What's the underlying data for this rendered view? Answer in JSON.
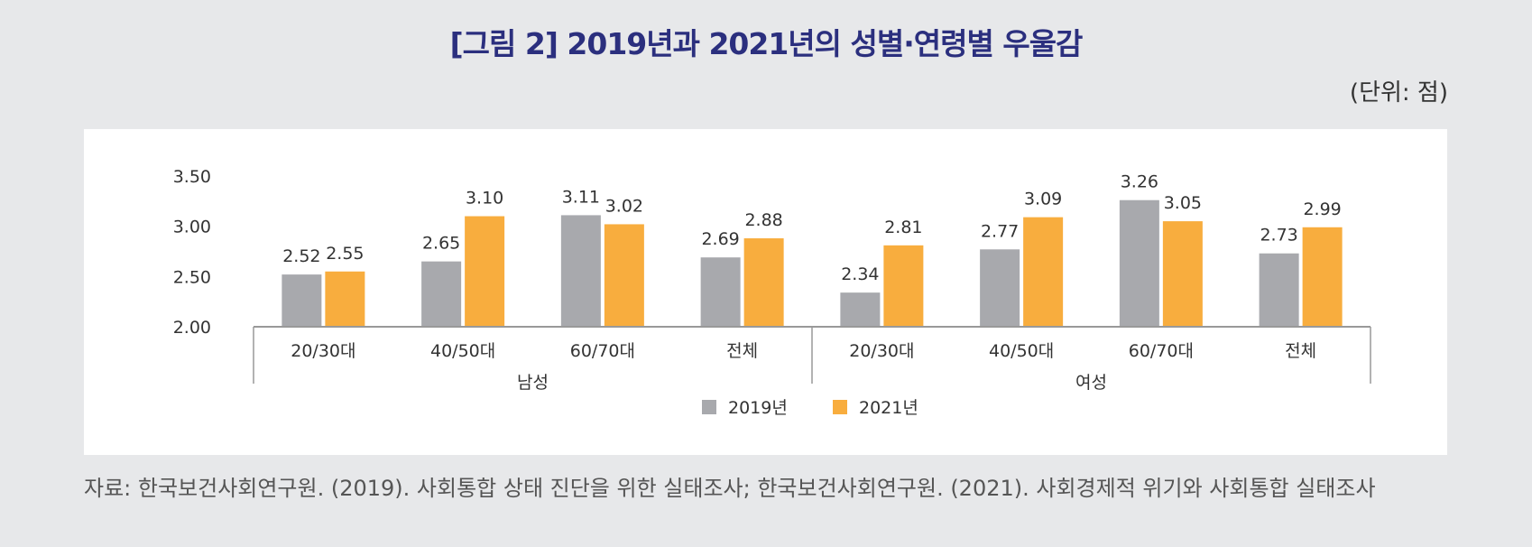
{
  "title": "[그림 2] 2019년과 2021년의 성별·연령별 우울감",
  "unit_label": "(단위: 점)",
  "source": "자료: 한국보건사회연구원. (2019). 사회통합 상태 진단을 위한 실태조사; 한국보건사회연구원. (2021). 사회경제적 위기와 사회통합 실태조사",
  "chart_data": {
    "type": "bar",
    "title": "[그림 2] 2019년과 2021년의 성별·연령별 우울감",
    "unit": "(단위: 점)",
    "ylim": [
      2.0,
      3.5
    ],
    "yticks": [
      "3.50",
      "3.00",
      "2.50",
      "2.00"
    ],
    "groups": [
      {
        "label": "남성",
        "categories": [
          "20/30대",
          "40/50대",
          "60/70대",
          "전체"
        ]
      },
      {
        "label": "여성",
        "categories": [
          "20/30대",
          "40/50대",
          "60/70대",
          "전체"
        ]
      }
    ],
    "categories": [
      "20/30대",
      "40/50대",
      "60/70대",
      "전체",
      "20/30대",
      "40/50대",
      "60/70대",
      "전체"
    ],
    "series": [
      {
        "name": "2019년",
        "color": "#a8a9ad",
        "values": [
          2.52,
          2.65,
          3.11,
          2.69,
          2.34,
          2.77,
          3.26,
          2.73
        ],
        "labels": [
          "2.52",
          "2.65",
          "3.11",
          "2.69",
          "2.34",
          "2.77",
          "3.26",
          "2.73"
        ]
      },
      {
        "name": "2021년",
        "color": "#f8ad3e",
        "values": [
          2.55,
          3.1,
          3.02,
          2.88,
          2.81,
          3.09,
          3.05,
          2.99
        ],
        "labels": [
          "2.55",
          "3.10",
          "3.02",
          "2.88",
          "2.81",
          "3.09",
          "3.05",
          "2.99"
        ]
      }
    ],
    "legend_position": "bottom"
  }
}
